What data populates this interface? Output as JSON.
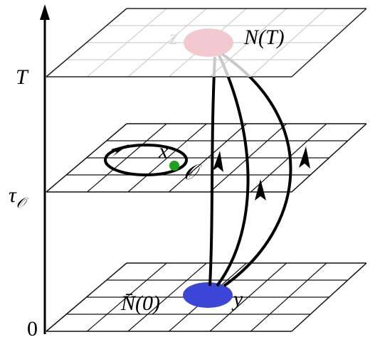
{
  "axis": {
    "top_label": "T",
    "mid_label": {
      "main": "τ",
      "sub": "𝒪"
    },
    "bottom_label": "0"
  },
  "top_plane": {
    "point_label": "z",
    "set_label": "N(T)"
  },
  "middle_plane": {
    "point_label": "x",
    "orbit_label": "𝒪"
  },
  "bottom_plane": {
    "set_label": "N̄(0)",
    "point_label": "y"
  }
}
